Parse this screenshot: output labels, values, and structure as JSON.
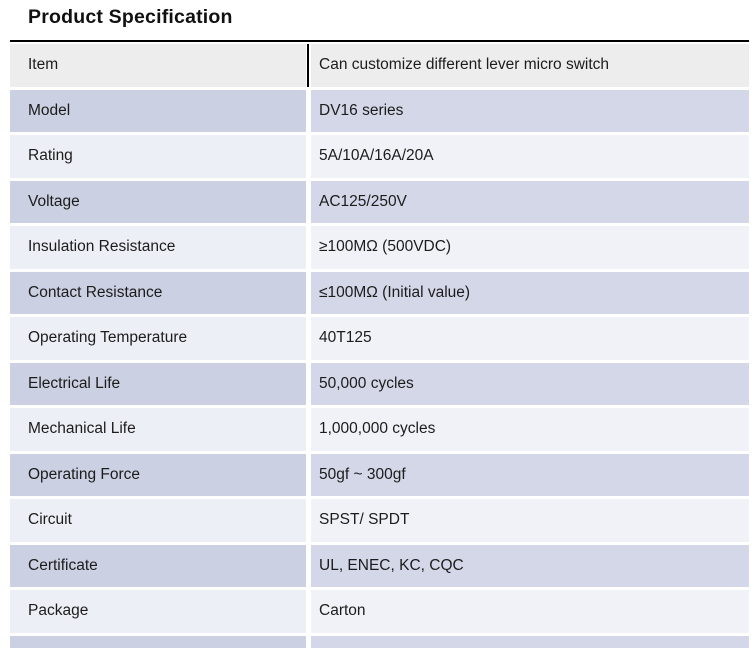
{
  "page": {
    "title": "Product Specification"
  },
  "table": {
    "rows": [
      {
        "label": "Item",
        "value": "Can customize different lever micro switch"
      },
      {
        "label": "Model",
        "value": "DV16 series"
      },
      {
        "label": "Rating",
        "value": "5A/10A/16A/20A"
      },
      {
        "label": "Voltage",
        "value": "AC125/250V"
      },
      {
        "label": "Insulation Resistance",
        "value": "≥100MΩ (500VDC)"
      },
      {
        "label": "Contact Resistance",
        "value": "≤100MΩ (Initial value)"
      },
      {
        "label": "Operating Temperature",
        "value": "40T125"
      },
      {
        "label": "Electrical Life",
        "value": "50,000 cycles"
      },
      {
        "label": "Mechanical Life",
        "value": "1,000,000 cycles"
      },
      {
        "label": "Operating Force",
        "value": "50gf ~ 300gf"
      },
      {
        "label": "Circuit",
        "value": "SPST/ SPDT"
      },
      {
        "label": "Certificate",
        "value": "UL, ENEC, KC, CQC"
      },
      {
        "label": "Package",
        "value": "Carton"
      }
    ],
    "colors": {
      "rule": "#000000",
      "header_bg": "#ededed",
      "lavender_left": "#cbd0e2",
      "lavender_right": "#d4d7e8",
      "light_left": "#edeff6",
      "light_right": "#f1f2f8"
    }
  }
}
